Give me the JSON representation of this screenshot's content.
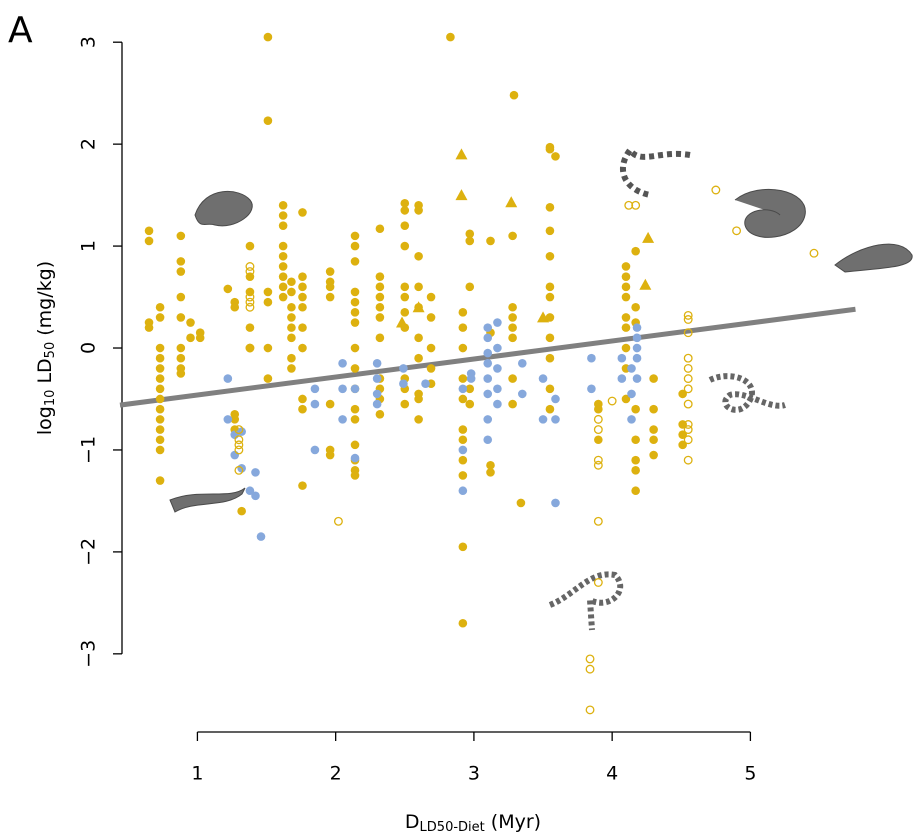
{
  "chart_data": {
    "type": "scatter",
    "panel_label": "A",
    "ylabel": [
      "log",
      "10",
      " LD",
      "50",
      " (mg/kg)"
    ],
    "xlabel": [
      "D",
      "LD50-Diet",
      " (Myr)"
    ],
    "xlim": [
      0.44,
      5.8
    ],
    "ylim": [
      -3.6,
      3.1
    ],
    "xticks": [
      1,
      2,
      3,
      4,
      5
    ],
    "yticks": [
      {
        "value": -3,
        "label": "−3"
      },
      {
        "value": -2,
        "label": "−2"
      },
      {
        "value": -1,
        "label": "−1"
      },
      0,
      1,
      2,
      3
    ],
    "trend": {
      "color": "#808080",
      "x": [
        0.44,
        5.76
      ],
      "values": [
        -0.56,
        0.38
      ]
    },
    "series": [
      {
        "color": "#DDB10F",
        "marker": "circle",
        "filled": true,
        "x": [
          0.65,
          0.65,
          0.65,
          0.65,
          0.73,
          0.73,
          0.73,
          0.73,
          0.73,
          0.73,
          0.73,
          0.73,
          0.73,
          0.73,
          0.73,
          0.73,
          0.73,
          0.73,
          0.88,
          0.88,
          0.88,
          0.88,
          0.88,
          0.88,
          0.88,
          0.88,
          0.88,
          0.95,
          0.95,
          1.02,
          1.02,
          1.22,
          1.27,
          1.27,
          1.27,
          1.27,
          1.27,
          1.32,
          1.38,
          1.38,
          1.38,
          1.38,
          1.38,
          1.51,
          1.51,
          1.51,
          1.51,
          1.51,
          1.51,
          1.62,
          1.62,
          1.62,
          1.62,
          1.62,
          1.62,
          1.62,
          1.62,
          1.62,
          1.68,
          1.68,
          1.68,
          1.68,
          1.68,
          1.68,
          1.68,
          1.68,
          1.76,
          1.76,
          1.76,
          1.76,
          1.76,
          1.76,
          1.76,
          1.76,
          1.76,
          1.76,
          1.96,
          1.96,
          1.96,
          1.96,
          1.96,
          1.96,
          1.96,
          2.14,
          2.14,
          2.14,
          2.14,
          2.14,
          2.14,
          2.14,
          2.14,
          2.14,
          2.14,
          2.14,
          2.14,
          2.14,
          2.14,
          2.14,
          2.14,
          2.32,
          2.32,
          2.32,
          2.32,
          2.32,
          2.32,
          2.32,
          2.32,
          2.32,
          2.32,
          2.32,
          2.5,
          2.5,
          2.5,
          2.5,
          2.5,
          2.5,
          2.5,
          2.5,
          2.5,
          2.5,
          2.5,
          2.6,
          2.6,
          2.6,
          2.6,
          2.6,
          2.6,
          2.6,
          2.6,
          2.6,
          2.6,
          2.69,
          2.69,
          2.69,
          2.69,
          2.69,
          2.83,
          2.92,
          2.92,
          2.92,
          2.92,
          2.92,
          2.92,
          2.92,
          2.92,
          2.92,
          2.92,
          2.92,
          2.97,
          2.97,
          2.97,
          2.97,
          2.97,
          3.12,
          3.12,
          3.12,
          3.12,
          3.28,
          3.28,
          3.28,
          3.28,
          3.28,
          3.28,
          3.28,
          3.29,
          3.34,
          3.55,
          3.55,
          3.55,
          3.55,
          3.55,
          3.55,
          3.55,
          3.55,
          3.55,
          3.55,
          3.55,
          3.55,
          3.59,
          3.9,
          3.9,
          3.9,
          4.1,
          4.1,
          4.1,
          4.1,
          4.1,
          4.1,
          4.1,
          4.1,
          4.1,
          4.17,
          4.17,
          4.17,
          4.17,
          4.17,
          4.17,
          4.17,
          4.17,
          4.3,
          4.3,
          4.3,
          4.3,
          4.3,
          4.51,
          4.51,
          4.51,
          4.51
        ],
        "values": [
          1.15,
          1.05,
          0.25,
          0.2,
          0.4,
          0.3,
          0.0,
          -0.2,
          -0.3,
          -0.4,
          -0.5,
          -0.6,
          -0.7,
          -0.8,
          -0.9,
          -1.0,
          -1.3,
          -0.1,
          1.1,
          0.85,
          0.75,
          0.5,
          0.3,
          0.0,
          -0.1,
          -0.2,
          -0.25,
          0.25,
          0.1,
          0.15,
          0.1,
          0.58,
          0.45,
          0.4,
          -0.65,
          -0.7,
          -0.8,
          -1.6,
          1.0,
          0.7,
          0.55,
          0.2,
          0.0,
          3.05,
          2.23,
          0.55,
          0.45,
          0.0,
          -0.3,
          1.4,
          1.3,
          1.2,
          1.0,
          0.9,
          0.8,
          0.7,
          0.6,
          0.5,
          0.4,
          0.3,
          0.2,
          0.1,
          -0.1,
          -0.2,
          0.65,
          0.55,
          1.33,
          0.7,
          0.6,
          0.5,
          0.4,
          0.2,
          0.0,
          -0.5,
          -0.6,
          -1.35,
          0.75,
          0.65,
          0.6,
          0.5,
          -0.55,
          -1.0,
          -1.05,
          1.1,
          1.0,
          0.85,
          0.55,
          0.45,
          0.35,
          0.25,
          0.0,
          -0.2,
          -0.4,
          -0.6,
          -0.7,
          -1.1,
          -1.2,
          -1.25,
          -0.95,
          1.17,
          0.7,
          0.6,
          0.5,
          0.4,
          0.3,
          0.1,
          -0.3,
          -0.4,
          -0.5,
          -0.65,
          1.42,
          1.35,
          1.2,
          1.0,
          0.6,
          0.5,
          0.35,
          0.2,
          -0.3,
          -0.4,
          -0.55,
          1.4,
          1.35,
          0.9,
          0.6,
          0.4,
          0.1,
          -0.1,
          -0.45,
          -0.7,
          -0.5,
          0.5,
          0.3,
          0.0,
          -0.2,
          -0.35,
          3.05,
          0.35,
          0.2,
          0.0,
          -0.3,
          -0.5,
          -0.8,
          -0.9,
          -1.1,
          -1.25,
          -1.95,
          -2.7,
          1.12,
          1.05,
          0.6,
          -0.4,
          -0.55,
          1.05,
          0.15,
          -1.15,
          -1.22,
          1.1,
          0.4,
          0.3,
          0.2,
          0.1,
          -0.3,
          -0.55,
          2.48,
          -1.52,
          1.97,
          1.95,
          1.38,
          1.15,
          0.9,
          0.6,
          0.5,
          0.3,
          0.1,
          -0.1,
          -0.4,
          -0.6,
          1.88,
          -0.55,
          -0.6,
          -0.9,
          0.8,
          0.7,
          0.6,
          0.5,
          0.3,
          0.2,
          0.0,
          -0.2,
          -0.5,
          0.95,
          0.4,
          0.25,
          -0.6,
          -0.9,
          -1.1,
          -1.2,
          -1.4,
          -0.3,
          -0.6,
          -0.8,
          -0.9,
          -1.05,
          -0.75,
          -0.85,
          -0.95,
          -0.45
        ]
      },
      {
        "color": "#86A8DC",
        "marker": "circle",
        "filled": true,
        "x": [
          1.22,
          1.22,
          1.27,
          1.27,
          1.32,
          1.32,
          1.38,
          1.42,
          1.42,
          1.46,
          1.85,
          1.85,
          1.85,
          2.05,
          2.05,
          2.05,
          2.14,
          2.14,
          2.3,
          2.3,
          2.3,
          2.3,
          2.49,
          2.49,
          2.65,
          2.92,
          2.92,
          2.92,
          2.98,
          2.98,
          3.1,
          3.1,
          3.1,
          3.1,
          3.1,
          3.1,
          3.1,
          3.1,
          3.17,
          3.17,
          3.17,
          3.17,
          3.17,
          3.35,
          3.35,
          3.5,
          3.5,
          3.59,
          3.59,
          3.59,
          3.85,
          3.85,
          4.07,
          4.07,
          4.14,
          4.14,
          4.14,
          4.18,
          4.18,
          4.18,
          4.18,
          4.18
        ],
        "values": [
          -0.3,
          -0.7,
          -0.85,
          -1.05,
          -0.82,
          -1.18,
          -1.4,
          -1.22,
          -1.45,
          -1.85,
          -0.4,
          -0.55,
          -1.0,
          -0.15,
          -0.4,
          -0.7,
          -1.08,
          -0.4,
          -0.15,
          -0.3,
          -0.45,
          -0.55,
          -0.2,
          -0.35,
          -0.35,
          -0.4,
          -1.0,
          -1.4,
          -0.25,
          -0.3,
          0.2,
          0.1,
          -0.05,
          -0.15,
          -0.3,
          -0.45,
          -0.7,
          -0.9,
          0.25,
          0.0,
          -0.2,
          -0.4,
          -0.55,
          -0.15,
          -0.45,
          -0.3,
          -0.7,
          -0.5,
          -0.7,
          -1.52,
          -0.1,
          -0.4,
          -0.1,
          -0.3,
          -0.2,
          -0.45,
          -0.7,
          0.2,
          0.1,
          0.0,
          -0.1,
          -0.3
        ]
      },
      {
        "color": "#DDB10F",
        "marker": "circle",
        "filled": false,
        "x": [
          1.38,
          1.38,
          1.38,
          1.38,
          1.38,
          1.38,
          1.3,
          1.3,
          1.3,
          1.3,
          1.3,
          2.02,
          3.84,
          3.84,
          3.84,
          3.9,
          3.9,
          3.9,
          3.9,
          3.9,
          3.9,
          4.0,
          4.12,
          4.17,
          4.55,
          4.55,
          4.55,
          4.55,
          4.55,
          4.55,
          4.55,
          4.55,
          4.55,
          4.55,
          4.55,
          4.55,
          4.75,
          4.9,
          5.46
        ],
        "values": [
          0.8,
          0.75,
          0.5,
          0.45,
          0.4,
          0.0,
          -0.8,
          -0.9,
          -0.95,
          -1.0,
          -1.2,
          -1.7,
          -3.05,
          -3.15,
          -3.55,
          -0.7,
          -0.8,
          -1.1,
          -1.15,
          -1.7,
          -2.3,
          -0.52,
          1.4,
          1.4,
          0.32,
          0.28,
          0.15,
          -0.1,
          -0.2,
          -0.3,
          -0.4,
          -0.55,
          -0.75,
          -0.8,
          -0.9,
          -1.1,
          1.55,
          1.15,
          0.93
        ]
      },
      {
        "color": "#DDB10F",
        "marker": "triangle",
        "filled": true,
        "x": [
          2.91,
          2.91,
          3.27,
          2.48,
          4.26,
          4.24,
          2.6,
          3.5
        ],
        "values": [
          1.9,
          1.5,
          1.43,
          0.25,
          1.08,
          0.62,
          0.4,
          0.3
        ]
      }
    ]
  }
}
